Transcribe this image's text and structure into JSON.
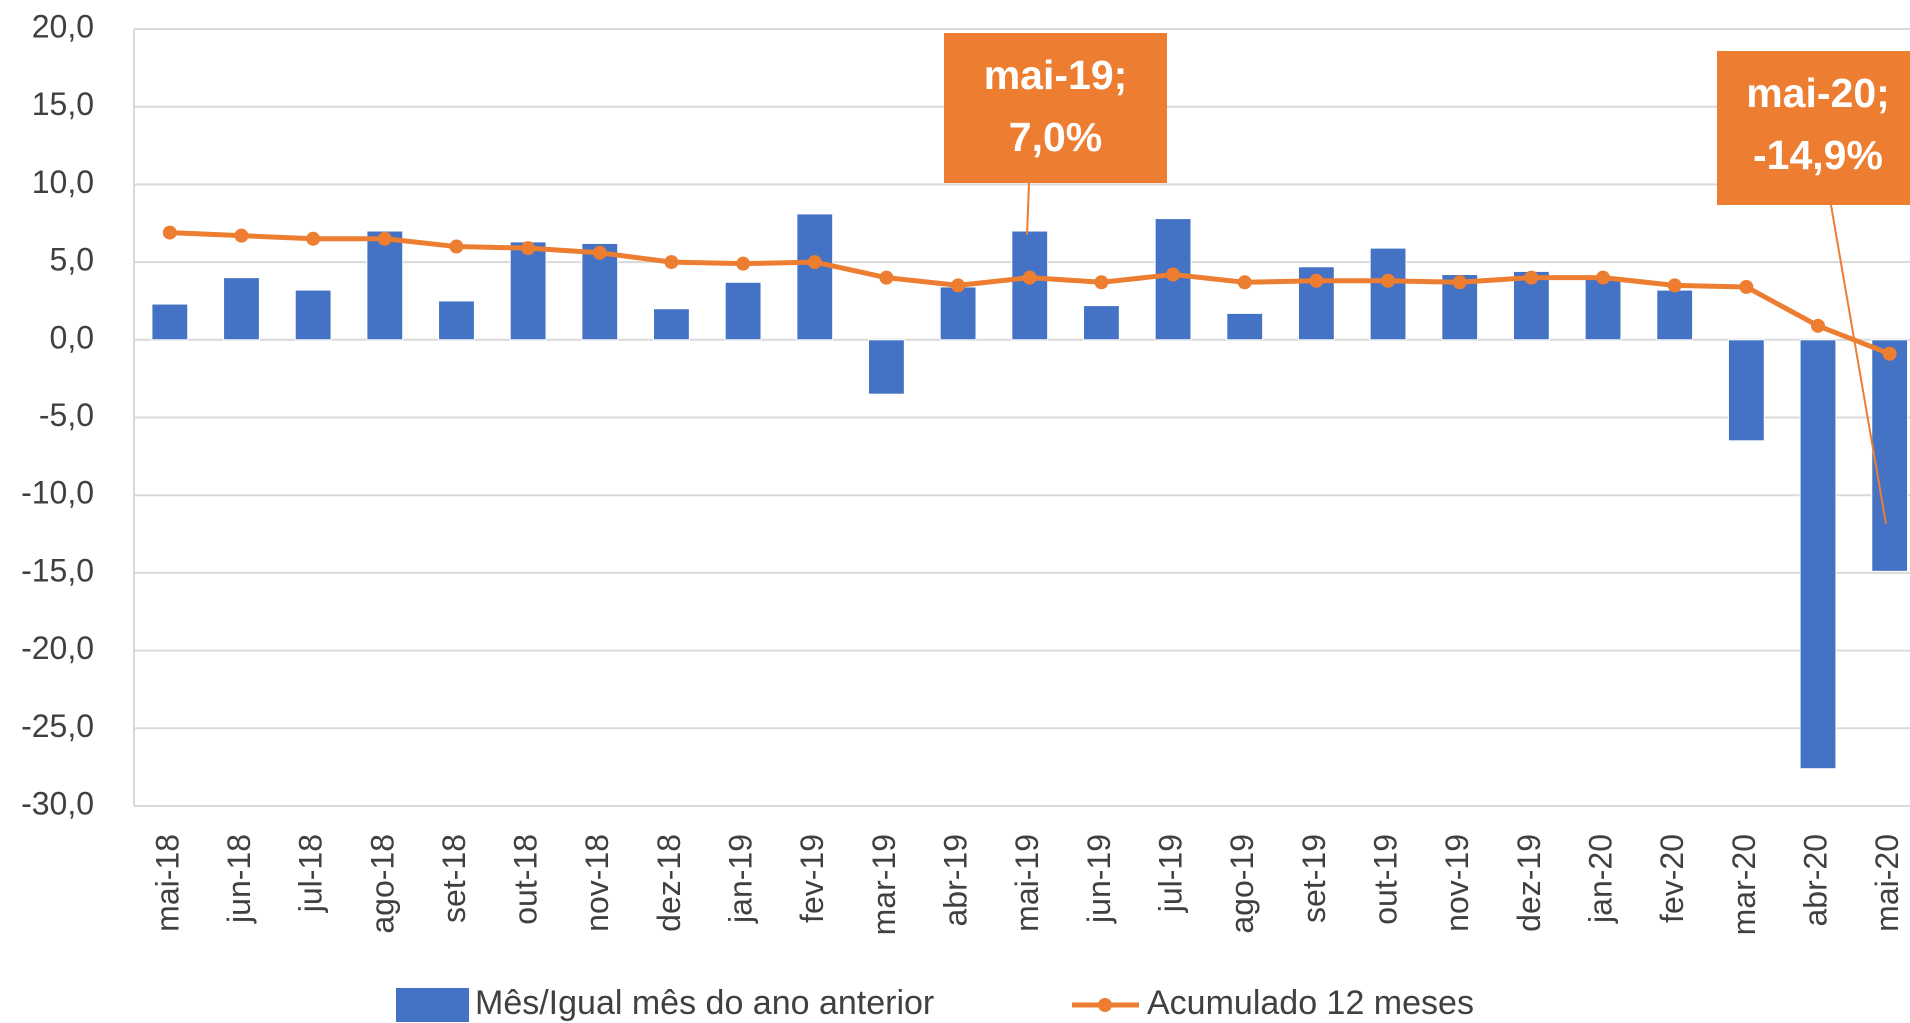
{
  "chart_data": {
    "type": "combo",
    "categories": [
      "mai-18",
      "jun-18",
      "jul-18",
      "ago-18",
      "set-18",
      "out-18",
      "nov-18",
      "dez-18",
      "jan-19",
      "fev-19",
      "mar-19",
      "abr-19",
      "mai-19",
      "jun-19",
      "jul-19",
      "ago-19",
      "set-19",
      "out-19",
      "nov-19",
      "dez-19",
      "jan-20",
      "fev-20",
      "mar-20",
      "abr-20",
      "mai-20"
    ],
    "series": [
      {
        "name": "Mês/Igual mês do ano anterior",
        "type": "bar",
        "color": "#4472c4",
        "values": [
          2.3,
          4.0,
          3.2,
          7.0,
          2.5,
          6.3,
          6.2,
          2.0,
          3.7,
          8.1,
          -3.5,
          3.4,
          7.0,
          2.2,
          7.8,
          1.7,
          4.7,
          5.9,
          4.2,
          4.4,
          4.0,
          3.2,
          -6.5,
          -27.6,
          -14.9
        ]
      },
      {
        "name": "Acumulado 12 meses",
        "type": "line",
        "color": "#ed7d31",
        "values": [
          6.9,
          6.7,
          6.5,
          6.5,
          6.0,
          5.9,
          5.6,
          5.0,
          4.9,
          5.0,
          4.0,
          3.5,
          4.0,
          3.7,
          4.2,
          3.7,
          3.8,
          3.8,
          3.7,
          4.0,
          4.0,
          3.5,
          3.4,
          0.9,
          -0.9
        ]
      }
    ],
    "ylim": [
      -30,
      20
    ],
    "yticks": [
      {
        "value": -30,
        "label": "-30,0"
      },
      {
        "value": -25,
        "label": "-25,0"
      },
      {
        "value": -20,
        "label": "-20,0"
      },
      {
        "value": -15,
        "label": "-15,0"
      },
      {
        "value": -10,
        "label": "-10,0"
      },
      {
        "value": -5,
        "label": "-5,0"
      },
      {
        "value": 0,
        "label": "0,0"
      },
      {
        "value": 5,
        "label": "5,0"
      },
      {
        "value": 10,
        "label": "10,0"
      },
      {
        "value": 15,
        "label": "15,0"
      },
      {
        "value": 20,
        "label": "20,0"
      }
    ],
    "grid": true,
    "legend": "bottom",
    "annotations": [
      {
        "lines": [
          "mai-19;",
          "7,0%"
        ],
        "color": "#ed7d31"
      },
      {
        "lines": [
          "mai-20;",
          "-14,9%"
        ],
        "color": "#ed7d31"
      }
    ]
  }
}
